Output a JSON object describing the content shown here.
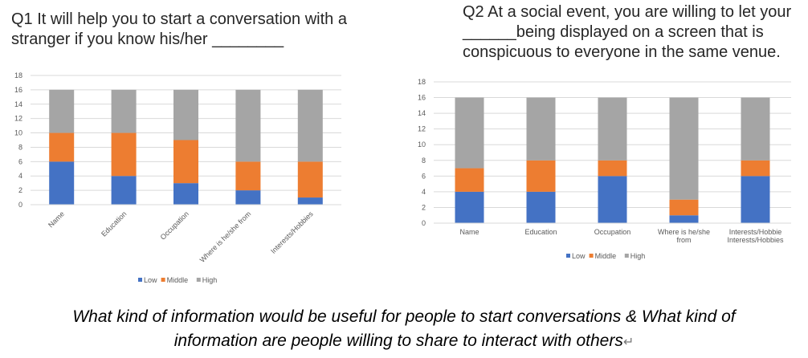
{
  "q1_title": "Q1 It will help you to start a conversation with a stranger if you know his/her ________",
  "q2_title": "Q2 At a social event, you are willing to let your ______being displayed on a screen that is conspicuous to everyone in the same venue.",
  "caption": {
    "line1": "What kind of information would be useful for people to start conversations & What kind of",
    "line2": "information are people willing to share to interact with others",
    "mark": "↵"
  },
  "colors": {
    "Low": "#4472c4",
    "Middle": "#ed7d31",
    "High": "#a5a5a5"
  },
  "chart_data": [
    {
      "type": "bar",
      "stacked": true,
      "categories": [
        "Name",
        "Education",
        "Occupation",
        "Where is he/she from",
        "Interests/Hobbies"
      ],
      "series": [
        {
          "name": "Low",
          "values": [
            6,
            4,
            3,
            2,
            1
          ]
        },
        {
          "name": "Middle",
          "values": [
            4,
            6,
            6,
            4,
            5
          ]
        },
        {
          "name": "High",
          "values": [
            6,
            6,
            7,
            10,
            10
          ]
        }
      ],
      "ylim": [
        0,
        18
      ],
      "yticks": [
        0,
        2,
        4,
        6,
        8,
        10,
        12,
        14,
        16,
        18
      ],
      "grid": true,
      "legend": "bottom",
      "xlabel_rotation": -45
    },
    {
      "type": "bar",
      "stacked": true,
      "categories": [
        "Name",
        "Education",
        "Occupation",
        "Where is he/she from",
        "Interests/Hobbies"
      ],
      "series": [
        {
          "name": "Low",
          "values": [
            4,
            4,
            6,
            1,
            6
          ]
        },
        {
          "name": "Middle",
          "values": [
            3,
            4,
            2,
            2,
            2
          ]
        },
        {
          "name": "High",
          "values": [
            9,
            8,
            8,
            13,
            8
          ]
        }
      ],
      "ylim": [
        0,
        18
      ],
      "yticks": [
        0,
        2,
        4,
        6,
        8,
        10,
        12,
        14,
        16,
        18
      ],
      "grid": true,
      "legend": "bottom",
      "xlabel_rotation": 0
    }
  ]
}
